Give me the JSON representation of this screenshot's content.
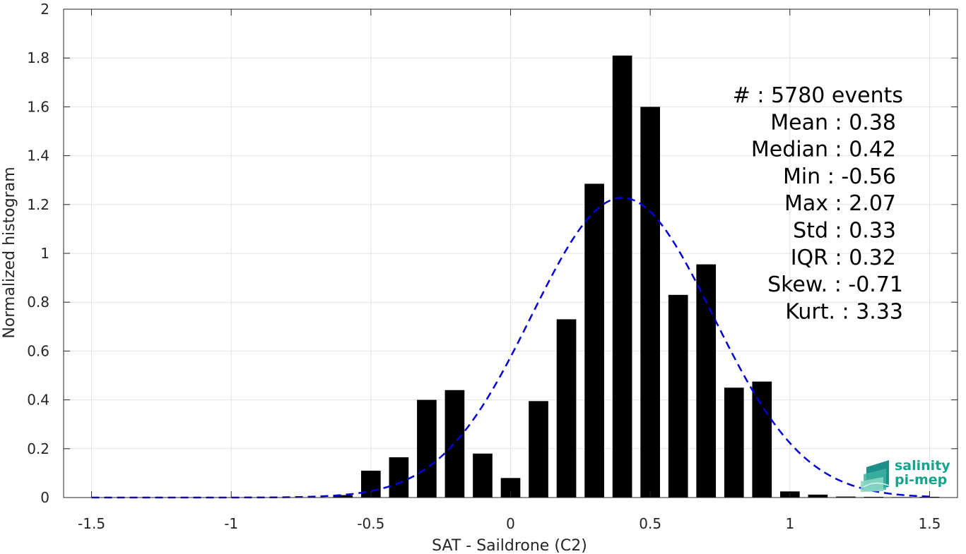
{
  "chart_data": {
    "type": "bar",
    "title": "",
    "xlabel": "SAT - Saildrone (C2)",
    "ylabel": "Normalized histogram",
    "xlim": [
      -1.6,
      1.6
    ],
    "ylim": [
      0,
      2
    ],
    "xticks": [
      -1.5,
      -1,
      -0.5,
      0,
      0.5,
      1,
      1.5
    ],
    "xtick_labels": [
      "-1.5",
      "-1",
      "-0.5",
      "0",
      "0.5",
      "1",
      "1.5"
    ],
    "yticks": [
      0,
      0.2,
      0.4,
      0.6,
      0.8,
      1,
      1.2,
      1.4,
      1.6,
      1.8,
      2
    ],
    "ytick_labels": [
      "0",
      "0.2",
      "0.4",
      "0.6",
      "0.8",
      "1",
      "1.2",
      "1.4",
      "1.6",
      "1.8",
      "2"
    ],
    "grid": true,
    "bar_color": "#000000",
    "bin_width": 0.1,
    "bars": [
      {
        "x": -0.6,
        "y": 0.01
      },
      {
        "x": -0.5,
        "y": 0.11
      },
      {
        "x": -0.4,
        "y": 0.165
      },
      {
        "x": -0.3,
        "y": 0.4
      },
      {
        "x": -0.2,
        "y": 0.44
      },
      {
        "x": -0.1,
        "y": 0.18
      },
      {
        "x": 0.0,
        "y": 0.08
      },
      {
        "x": 0.1,
        "y": 0.395
      },
      {
        "x": 0.2,
        "y": 0.73
      },
      {
        "x": 0.3,
        "y": 1.285
      },
      {
        "x": 0.4,
        "y": 1.81
      },
      {
        "x": 0.5,
        "y": 1.6
      },
      {
        "x": 0.6,
        "y": 0.83
      },
      {
        "x": 0.7,
        "y": 0.955
      },
      {
        "x": 0.8,
        "y": 0.45
      },
      {
        "x": 0.9,
        "y": 0.475
      },
      {
        "x": 1.0,
        "y": 0.025
      },
      {
        "x": 1.1,
        "y": 0.012
      },
      {
        "x": 1.2,
        "y": 0.004
      },
      {
        "x": 1.3,
        "y": 0.003
      },
      {
        "x": 1.4,
        "y": 0.002
      },
      {
        "x": 1.5,
        "y": 0.003
      }
    ],
    "fit_curve": {
      "type": "gaussian",
      "mean": 0.4,
      "std": 0.325,
      "x_range": [
        -1.5,
        1.5
      ],
      "color": "#0000dd",
      "style": "dashed"
    }
  },
  "stats": [
    "#  : 5780 events",
    "Mean : 0.38",
    "Median : 0.42",
    "Min : -0.56",
    "Max : 2.07",
    "Std : 0.33",
    "IQR : 0.32",
    "Skew. : -0.71",
    "Kurt. : 3.33"
  ],
  "logo": {
    "line1": "salinity",
    "line2": "pi-mep",
    "color": "#1aa38c"
  }
}
